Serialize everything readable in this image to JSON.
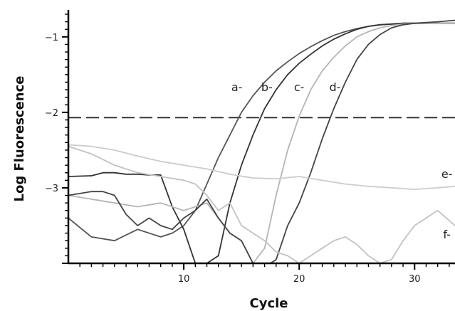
{
  "chart_data": {
    "type": "line",
    "title": "",
    "xlabel": "Cycle",
    "ylabel": "Log Fluorescence",
    "xlim": [
      0,
      33.5
    ],
    "ylim": [
      -4.0,
      -0.7
    ],
    "x_ticks": [
      10,
      20,
      30
    ],
    "y_ticks": [
      -1,
      -2,
      -3
    ],
    "threshold": -2.07,
    "grid": false,
    "legend": "none",
    "series": [
      {
        "name": "a-",
        "color": "#555555",
        "x": [
          0,
          2,
          4,
          6,
          8,
          9,
          10,
          11,
          12,
          13,
          14,
          15,
          16,
          17,
          18,
          19,
          20,
          21,
          22,
          23,
          24,
          25,
          26,
          27,
          28,
          29,
          30,
          31,
          32,
          33.5
        ],
        "y": [
          -3.4,
          -3.65,
          -3.7,
          -3.55,
          -3.65,
          -3.6,
          -3.5,
          -3.3,
          -2.95,
          -2.6,
          -2.3,
          -2.0,
          -1.78,
          -1.6,
          -1.45,
          -1.33,
          -1.22,
          -1.13,
          -1.05,
          -0.98,
          -0.93,
          -0.89,
          -0.86,
          -0.84,
          -0.83,
          -0.82,
          -0.82,
          -0.82,
          -0.82,
          -0.82
        ]
      },
      {
        "name": "b-",
        "color": "#333333",
        "x": [
          0,
          2,
          3,
          4,
          5,
          6,
          7,
          8,
          9,
          10,
          11,
          12,
          13,
          14,
          15,
          16,
          17,
          18,
          19,
          20,
          21,
          22,
          23,
          24,
          25,
          26,
          27,
          28,
          29,
          30,
          31,
          32,
          33.5
        ],
        "y": [
          -2.85,
          -2.84,
          -2.8,
          -2.8,
          -2.82,
          -2.82,
          -2.83,
          -2.83,
          -3.25,
          -3.55,
          -4.0,
          -4.0,
          -3.9,
          -3.2,
          -2.7,
          -2.3,
          -1.95,
          -1.7,
          -1.5,
          -1.35,
          -1.23,
          -1.12,
          -1.03,
          -0.96,
          -0.9,
          -0.86,
          -0.84,
          -0.83,
          -0.82,
          -0.82,
          -0.82,
          -0.82,
          -0.82
        ]
      },
      {
        "name": "c-",
        "color": "#b5b5b5",
        "x": [
          0,
          2,
          4,
          6,
          8,
          10,
          12,
          13,
          14,
          15,
          16,
          17,
          18,
          19,
          20,
          21,
          22,
          23,
          24,
          25,
          26,
          27,
          28,
          29,
          30,
          31,
          32,
          33.5
        ],
        "y": [
          -3.1,
          -3.15,
          -3.2,
          -3.25,
          -3.2,
          -3.3,
          -3.2,
          -3.4,
          -3.6,
          -3.7,
          -4.0,
          -3.8,
          -3.1,
          -2.5,
          -2.05,
          -1.7,
          -1.45,
          -1.27,
          -1.12,
          -1.0,
          -0.93,
          -0.88,
          -0.85,
          -0.83,
          -0.82,
          -0.82,
          -0.82,
          -0.82
        ]
      },
      {
        "name": "d-",
        "color": "#444444",
        "x": [
          0,
          2,
          3,
          4,
          5,
          6,
          7,
          8,
          9,
          10,
          11,
          12,
          13,
          14,
          15,
          16,
          17,
          17.5,
          18,
          19,
          20,
          21,
          22,
          23,
          24,
          25,
          26,
          27,
          28,
          29,
          30,
          31,
          32,
          33.5
        ],
        "y": [
          -3.1,
          -3.05,
          -3.05,
          -3.1,
          -3.35,
          -3.5,
          -3.4,
          -3.5,
          -3.55,
          -3.4,
          -3.3,
          -3.15,
          -3.4,
          -3.6,
          -3.7,
          -4.0,
          -4.0,
          -4.0,
          -3.95,
          -3.5,
          -3.2,
          -2.8,
          -2.35,
          -1.95,
          -1.6,
          -1.3,
          -1.1,
          -0.97,
          -0.88,
          -0.84,
          -0.82,
          -0.81,
          -0.8,
          -0.78
        ]
      },
      {
        "name": "e-",
        "color": "#cccccc",
        "x": [
          0,
          2,
          4,
          6,
          8,
          10,
          12,
          14,
          16,
          18,
          20,
          22,
          24,
          26,
          28,
          30,
          32,
          33.5
        ],
        "y": [
          -2.43,
          -2.45,
          -2.5,
          -2.58,
          -2.65,
          -2.7,
          -2.75,
          -2.82,
          -2.87,
          -2.88,
          -2.85,
          -2.9,
          -2.95,
          -2.98,
          -3.0,
          -3.02,
          -3.0,
          -2.98
        ]
      },
      {
        "name": "f-",
        "color": "#c2c2c2",
        "x": [
          0,
          2,
          4,
          6,
          8,
          10,
          11,
          12,
          13,
          14,
          15,
          16,
          17,
          18,
          19,
          20,
          21,
          22,
          23,
          24,
          25,
          26,
          27,
          28,
          29,
          30,
          31,
          32,
          33.5
        ],
        "y": [
          -2.45,
          -2.55,
          -2.7,
          -2.8,
          -2.85,
          -2.9,
          -2.95,
          -3.1,
          -3.3,
          -3.2,
          -3.5,
          -3.6,
          -3.7,
          -3.85,
          -3.9,
          -4.0,
          -3.9,
          -3.8,
          -3.7,
          -3.65,
          -3.75,
          -3.9,
          -4.0,
          -3.95,
          -3.7,
          -3.5,
          -3.4,
          -3.3,
          -3.5
        ]
      }
    ],
    "curve_labels": [
      {
        "text": "a-",
        "x": 14.6,
        "y": -1.72
      },
      {
        "text": "b-",
        "x": 17.2,
        "y": -1.72
      },
      {
        "text": "c-",
        "x": 20.0,
        "y": -1.72
      },
      {
        "text": "d-",
        "x": 23.1,
        "y": -1.72
      },
      {
        "text": "e-",
        "x": 32.8,
        "y": -2.87
      },
      {
        "text": "f-",
        "x": 32.8,
        "y": -3.67
      }
    ]
  }
}
